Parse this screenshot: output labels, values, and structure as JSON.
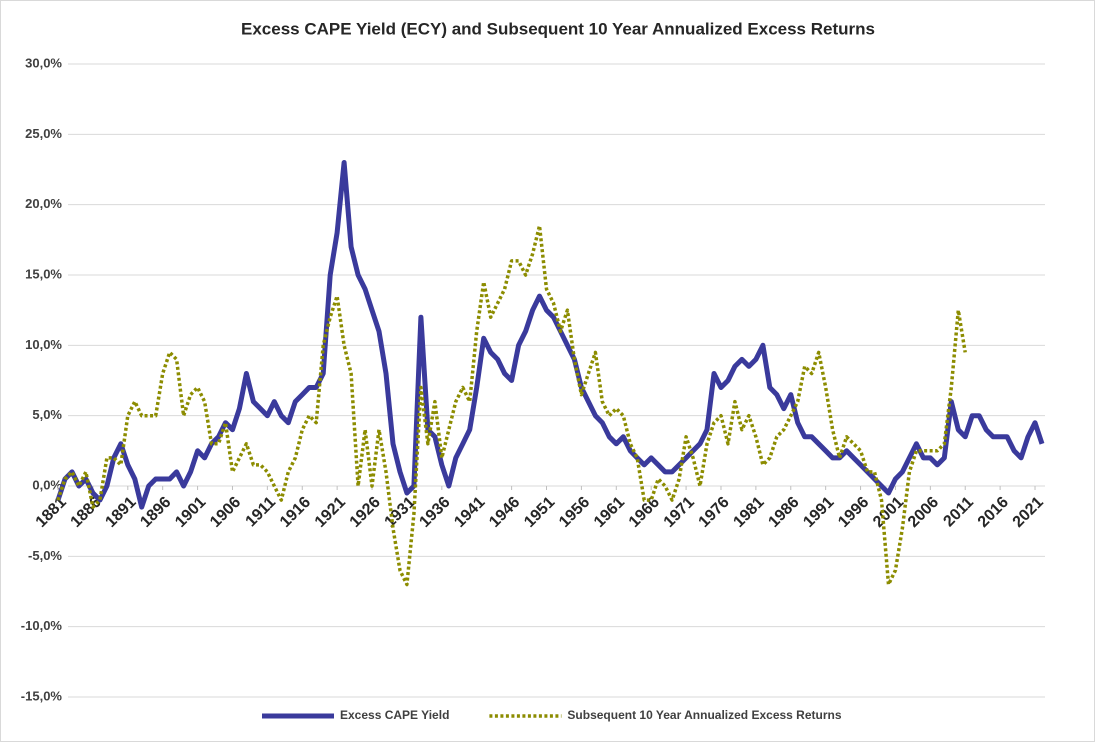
{
  "chart_data": {
    "type": "line",
    "title": "Excess CAPE Yield (ECY) and Subsequent 10 Year Annualized Excess Returns",
    "x": [
      1881,
      1882,
      1883,
      1884,
      1885,
      1886,
      1887,
      1888,
      1889,
      1890,
      1891,
      1892,
      1893,
      1894,
      1895,
      1896,
      1897,
      1898,
      1899,
      1900,
      1901,
      1902,
      1903,
      1904,
      1905,
      1906,
      1907,
      1908,
      1909,
      1910,
      1911,
      1912,
      1913,
      1914,
      1915,
      1916,
      1917,
      1918,
      1919,
      1920,
      1921,
      1922,
      1923,
      1924,
      1925,
      1926,
      1927,
      1928,
      1929,
      1930,
      1931,
      1932,
      1933,
      1934,
      1935,
      1936,
      1937,
      1938,
      1939,
      1940,
      1941,
      1942,
      1943,
      1944,
      1945,
      1946,
      1947,
      1948,
      1949,
      1950,
      1951,
      1952,
      1953,
      1954,
      1955,
      1956,
      1957,
      1958,
      1959,
      1960,
      1961,
      1962,
      1963,
      1964,
      1965,
      1966,
      1967,
      1968,
      1969,
      1970,
      1971,
      1972,
      1973,
      1974,
      1975,
      1976,
      1977,
      1978,
      1979,
      1980,
      1981,
      1982,
      1983,
      1984,
      1985,
      1986,
      1987,
      1988,
      1989,
      1990,
      1991,
      1992,
      1993,
      1994,
      1995,
      1996,
      1997,
      1998,
      1999,
      2000,
      2001,
      2002,
      2003,
      2004,
      2005,
      2006,
      2007,
      2008,
      2009,
      2010,
      2011,
      2012,
      2013,
      2014,
      2015,
      2016,
      2017,
      2018,
      2019,
      2020,
      2021,
      2022
    ],
    "series": [
      {
        "name": "Excess CAPE Yield",
        "color": "#3a3a9c",
        "style": "solid",
        "values": [
          -1,
          0.5,
          1,
          0,
          0.5,
          -0.5,
          -1,
          0,
          2,
          3,
          1.5,
          0.5,
          -1.5,
          0,
          0.5,
          0.5,
          0.5,
          1,
          0,
          1,
          2.5,
          2,
          3,
          3.5,
          4.5,
          4,
          5.5,
          8,
          6,
          5.5,
          5,
          6,
          5,
          4.5,
          6,
          6.5,
          7,
          7,
          8,
          15,
          18,
          23,
          17,
          15,
          14,
          12.5,
          11,
          8,
          3,
          1,
          -0.5,
          0,
          12,
          4,
          3.5,
          1.5,
          0,
          2,
          3,
          4,
          7,
          10.5,
          9.5,
          9,
          8,
          7.5,
          10,
          11,
          12.5,
          13.5,
          12.5,
          12,
          11,
          10,
          9,
          7,
          6,
          5,
          4.5,
          3.5,
          3,
          3.5,
          2.5,
          2,
          1.5,
          2,
          1.5,
          1,
          1,
          1.5,
          2,
          2.5,
          3,
          4,
          8,
          7,
          7.5,
          8.5,
          9,
          8.5,
          9,
          10,
          7,
          6.5,
          5.5,
          6.5,
          4.5,
          3.5,
          3.5,
          3,
          2.5,
          2,
          2,
          2.5,
          2,
          1.5,
          1,
          0.5,
          0,
          -0.5,
          0.5,
          1,
          2,
          3,
          2,
          2,
          1.5,
          2,
          6,
          4,
          3.5,
          5,
          5,
          4,
          3.5,
          3.5,
          3.5,
          2.5,
          2,
          3.5,
          4.5,
          3
        ]
      },
      {
        "name": "Subsequent 10 Year Annualized Excess Returns",
        "color": "#8c8c00",
        "style": "dotted",
        "values": [
          -1,
          0.5,
          1,
          0,
          1,
          -1.5,
          -1,
          2,
          2,
          1.5,
          5,
          6,
          5,
          5,
          5,
          8,
          9.5,
          9,
          5,
          6.5,
          7,
          6,
          3,
          3,
          4.5,
          1,
          2,
          3,
          1.5,
          1.5,
          1,
          0,
          -1,
          1,
          2,
          4,
          5,
          4.5,
          10,
          12,
          13.5,
          10,
          8,
          0,
          4,
          0,
          4,
          1,
          -3,
          -6,
          -7,
          -2,
          7,
          3,
          6,
          2,
          4,
          6,
          7,
          6,
          11,
          14.5,
          12,
          13,
          14,
          16,
          16,
          15,
          16.5,
          18.5,
          14,
          13,
          11,
          12.5,
          9,
          6.5,
          8,
          9.5,
          6,
          5,
          5.5,
          5,
          3,
          2,
          -1,
          -1,
          0.5,
          0,
          -1,
          0.5,
          3.5,
          2,
          0,
          3,
          4.5,
          5,
          3,
          6,
          4,
          5,
          3.5,
          1.5,
          2,
          3.5,
          4,
          5,
          6,
          8.5,
          8,
          9.5,
          7,
          4,
          2,
          3.5,
          3,
          2.5,
          1,
          1,
          -1,
          -7,
          -6,
          -3,
          1,
          2.5,
          2.5,
          2.5,
          2.5,
          3,
          7,
          12.5,
          9.5,
          null,
          null,
          null,
          null,
          null,
          null,
          null,
          null,
          null,
          null,
          null
        ]
      }
    ],
    "xlim": [
      1881,
      2022
    ],
    "xticks": [
      1881,
      1886,
      1891,
      1896,
      1901,
      1906,
      1911,
      1916,
      1921,
      1926,
      1931,
      1936,
      1941,
      1946,
      1951,
      1956,
      1961,
      1966,
      1971,
      1976,
      1981,
      1986,
      1991,
      1996,
      2001,
      2006,
      2011,
      2016,
      2021
    ],
    "ylim": [
      -15,
      30
    ],
    "yticks": [
      {
        "value": -15,
        "label": "-15,0%"
      },
      {
        "value": -10,
        "label": "-10,0%"
      },
      {
        "value": -5,
        "label": "-5,0%"
      },
      {
        "value": 0,
        "label": "0,0%"
      },
      {
        "value": 5,
        "label": "5,0%"
      },
      {
        "value": 10,
        "label": "10,0%"
      },
      {
        "value": 15,
        "label": "15,0%"
      },
      {
        "value": 20,
        "label": "20,0%"
      },
      {
        "value": 25,
        "label": "25,0%"
      },
      {
        "value": 30,
        "label": "30,0%"
      }
    ],
    "grid": true,
    "legend": "bottom"
  }
}
